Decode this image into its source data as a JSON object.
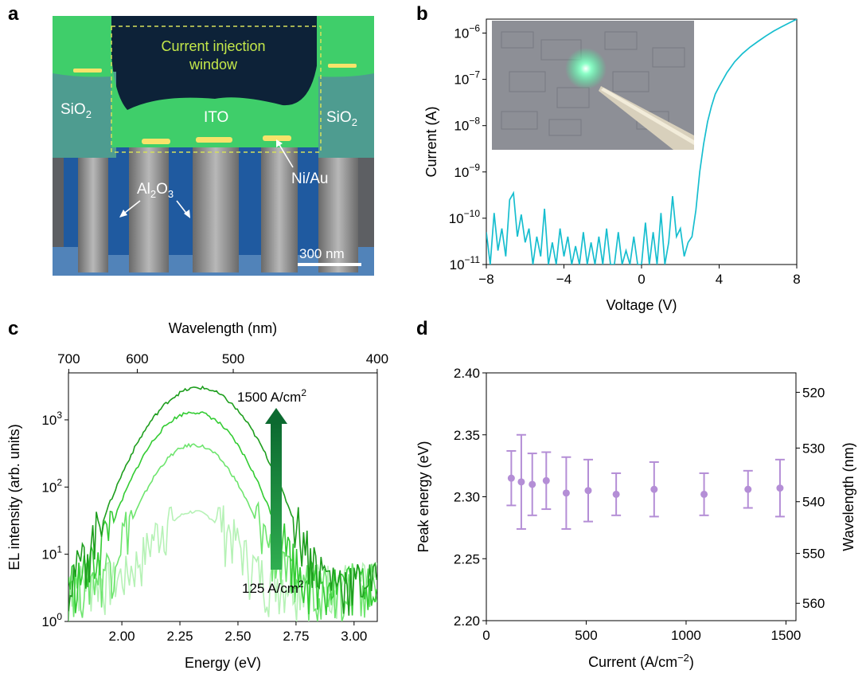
{
  "panels": {
    "a": {
      "label": "a",
      "annotations": {
        "window": [
          "Current injection",
          "window"
        ],
        "sio2_left": "SiO2",
        "sio2_right": "SiO2",
        "ito": "ITO",
        "nial": "Ni/Au",
        "al2o3": "Al2O3",
        "scale_bar": "300 nm"
      },
      "colors": {
        "background": "#0e2a4a",
        "green": "#3fce6a",
        "sio2": "#4e9c90",
        "nanowire": "#8a8a8a",
        "blue": "#2d6fc0"
      }
    },
    "b": {
      "label": "b"
    },
    "c": {
      "label": "c"
    },
    "d": {
      "label": "d"
    }
  },
  "chart_data": [
    {
      "panel": "b",
      "type": "line",
      "xlabel": "Voltage (V)",
      "ylabel": "Current (A)",
      "xlim": [
        -8,
        8
      ],
      "ylim": [
        1e-11,
        2e-06
      ],
      "yscale": "log",
      "xticks": [
        "−8",
        "−4",
        "0",
        "4",
        "8"
      ],
      "yticks": [
        {
          "value": 1e-11,
          "base": "10",
          "exp": "−11"
        },
        {
          "value": 1e-10,
          "base": "10",
          "exp": "−10"
        },
        {
          "value": 1e-09,
          "base": "10",
          "exp": "−9"
        },
        {
          "value": 1e-08,
          "base": "10",
          "exp": "−8"
        },
        {
          "value": 1e-07,
          "base": "10",
          "exp": "−7"
        },
        {
          "value": 1e-06,
          "base": "10",
          "exp": "−6"
        }
      ],
      "color": "#17becf",
      "x": [
        -8,
        -7.8,
        -7.6,
        -7.4,
        -7.2,
        -7,
        -6.8,
        -6.6,
        -6.4,
        -6.2,
        -6,
        -5.8,
        -5.6,
        -5.4,
        -5.2,
        -5,
        -4.8,
        -4.6,
        -4.4,
        -4.2,
        -4,
        -3.8,
        -3.6,
        -3.4,
        -3.2,
        -3,
        -2.8,
        -2.6,
        -2.4,
        -2.2,
        -2,
        -1.8,
        -1.6,
        -1.4,
        -1.2,
        -1,
        -0.8,
        -0.6,
        -0.4,
        -0.2,
        0,
        0.2,
        0.4,
        0.6,
        0.8,
        1,
        1.2,
        1.4,
        1.6,
        1.8,
        2,
        2.2,
        2.4,
        2.6,
        2.8,
        3,
        3.2,
        3.4,
        3.6,
        3.8,
        4,
        4.4,
        4.8,
        5.2,
        5.6,
        6,
        6.4,
        6.8,
        7.2,
        7.6,
        8
      ],
      "y": [
        5e-11,
        1e-11,
        1.3e-10,
        2e-11,
        6e-11,
        1.5e-11,
        2.5e-10,
        3.5e-10,
        4e-11,
        1.2e-10,
        3e-11,
        6e-11,
        1e-11,
        4e-11,
        1.5e-11,
        1.6e-10,
        1e-11,
        3e-11,
        1e-11,
        6e-11,
        1.5e-11,
        4e-11,
        1e-11,
        2.5e-11,
        1e-11,
        5e-11,
        1e-11,
        3e-11,
        1e-11,
        4e-11,
        1e-11,
        6e-11,
        1e-11,
        1e-11,
        5e-11,
        1e-11,
        2e-11,
        1e-11,
        4e-11,
        1e-11,
        1e-11,
        8e-11,
        1e-11,
        5e-11,
        1e-11,
        1.3e-10,
        1e-11,
        3e-11,
        3e-10,
        4e-11,
        6e-11,
        1.5e-11,
        3e-11,
        4e-11,
        1.5e-10,
        1e-09,
        4e-09,
        1.2e-08,
        2.6e-08,
        4.8e-08,
        7e-08,
        1.4e-07,
        2.4e-07,
        3.6e-07,
        5e-07,
        6.6e-07,
        8.6e-07,
        1.1e-06,
        1.35e-06,
        1.65e-06,
        2e-06
      ]
    },
    {
      "panel": "c",
      "type": "line",
      "xlabel": "Energy (eV)",
      "ylabel": "EL intensity (arb. units)",
      "top_xlabel": "Wavelength (nm)",
      "xlim": [
        1.77,
        3.1
      ],
      "ylim": [
        1,
        5000
      ],
      "yscale": "log",
      "xticks": [
        "2.00",
        "2.25",
        "2.50",
        "2.75",
        "3.00"
      ],
      "top_ticks": [
        "700",
        "600",
        "500",
        "400"
      ],
      "yticks": [
        {
          "value": 1,
          "base": "10",
          "exp": "0"
        },
        {
          "value": 10,
          "base": "10",
          "exp": "1"
        },
        {
          "value": 100,
          "base": "10",
          "exp": "2"
        },
        {
          "value": 1000,
          "base": "10",
          "exp": "3"
        }
      ],
      "annotations": {
        "high": "1500 A/cm",
        "high_sup": "2",
        "low": "125 A/cm",
        "low_sup": "2"
      },
      "series": [
        {
          "peak": 40,
          "center": 2.31,
          "width": 0.105,
          "color": "#b6f2b6"
        },
        {
          "peak": 420,
          "center": 2.31,
          "width": 0.115,
          "color": "#6ee56e"
        },
        {
          "peak": 1300,
          "center": 2.31,
          "width": 0.125,
          "color": "#33cc33"
        },
        {
          "peak": 3000,
          "center": 2.33,
          "width": 0.135,
          "color": "#1e9e1e"
        }
      ]
    },
    {
      "panel": "d",
      "type": "scatter",
      "xlabel": "Current (A/cm",
      "xlabel_sup": "−2",
      "xlabel_end": ")",
      "ylabel": "Peak energy (eV)",
      "right_ylabel": "Wavelength (nm)",
      "xlim": [
        0,
        1550
      ],
      "ylim": [
        2.2,
        2.4
      ],
      "xticks": [
        "0",
        "500",
        "1000",
        "1500"
      ],
      "yticks": [
        "2.20",
        "2.25",
        "2.30",
        "2.35",
        "2.40"
      ],
      "right_ticks": [
        "520",
        "530",
        "540",
        "550",
        "560"
      ],
      "color": "#b48ed6",
      "x": [
        125,
        175,
        230,
        300,
        400,
        510,
        650,
        840,
        1090,
        1310,
        1470
      ],
      "y": [
        2.315,
        2.312,
        2.31,
        2.313,
        2.303,
        2.305,
        2.302,
        2.306,
        2.302,
        2.306,
        2.307
      ],
      "err": [
        0.022,
        0.038,
        0.025,
        0.023,
        0.029,
        0.025,
        0.017,
        0.022,
        0.017,
        0.015,
        0.023
      ]
    }
  ]
}
